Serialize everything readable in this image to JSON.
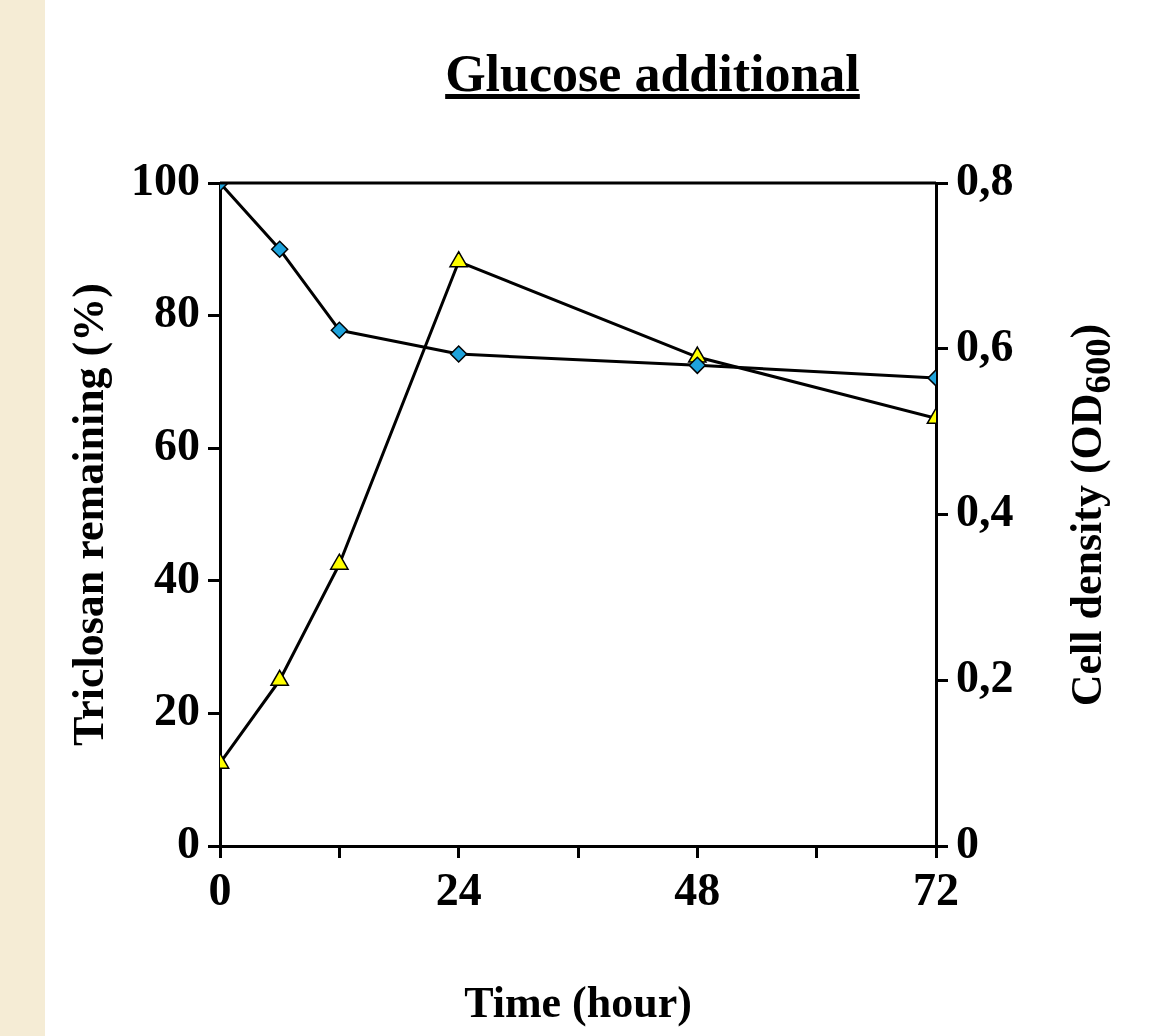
{
  "chart_data": {
    "type": "line",
    "title": "Glucose additional",
    "xlabel": "Time (hour)",
    "ylabel": "Triclosan remaining (%)",
    "y2label": "Cell density (OD$_{600}$)",
    "x": [
      0,
      6,
      12,
      24,
      48,
      72
    ],
    "xlim": [
      0,
      72
    ],
    "xticks": [
      0,
      {
        "value": 12,
        "label": null
      },
      24,
      {
        "value": 36,
        "label": null
      },
      48,
      {
        "value": 60,
        "label": null
      },
      72
    ],
    "ylim": [
      0,
      100
    ],
    "yticks": [
      0,
      20,
      40,
      60,
      80,
      100
    ],
    "y2lim": [
      0,
      0.8
    ],
    "y2ticks": [
      {
        "value": 0,
        "label": "0"
      },
      {
        "value": 0.2,
        "label": "0,2"
      },
      {
        "value": 0.4,
        "label": "0,4"
      },
      {
        "value": 0.6,
        "label": "0,6"
      },
      {
        "value": 0.8,
        "label": "0,8"
      }
    ],
    "series": [
      {
        "color": "#1ea3dc",
        "marker": "diamond",
        "values": [
          100,
          90,
          77.8,
          74.2,
          72.5,
          70.6
        ]
      },
      {
        "color": "#ffff00",
        "marker": "triangle",
        "axis": "y2",
        "values": [
          0.1,
          0.2,
          0.34,
          0.705,
          0.59,
          0.516
        ]
      }
    ],
    "grid": false,
    "legend": false,
    "line_style": "solid"
  }
}
